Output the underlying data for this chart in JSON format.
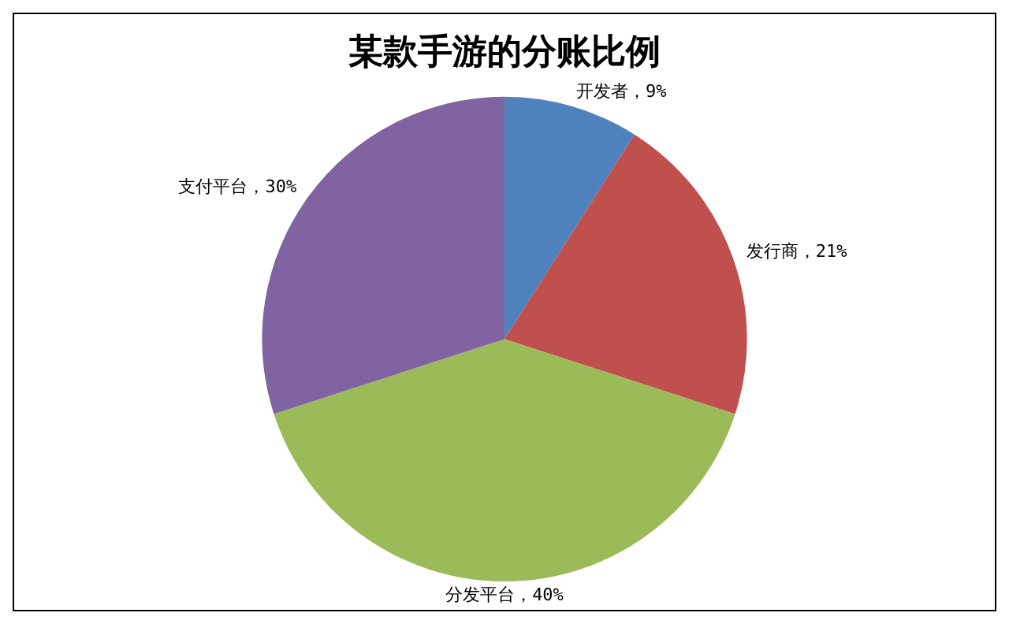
{
  "chart_data": {
    "type": "pie",
    "title": "某款手游的分账比例",
    "categories": [
      "开发者",
      "发行商",
      "分发平台",
      "支付平台"
    ],
    "values": [
      9,
      21,
      40,
      30
    ],
    "value_labels": [
      "9%",
      "21%",
      "40%",
      "30%"
    ],
    "colors": [
      "#4f81bd",
      "#c0504d",
      "#9bbb59",
      "#8064a2"
    ],
    "legend": false
  }
}
